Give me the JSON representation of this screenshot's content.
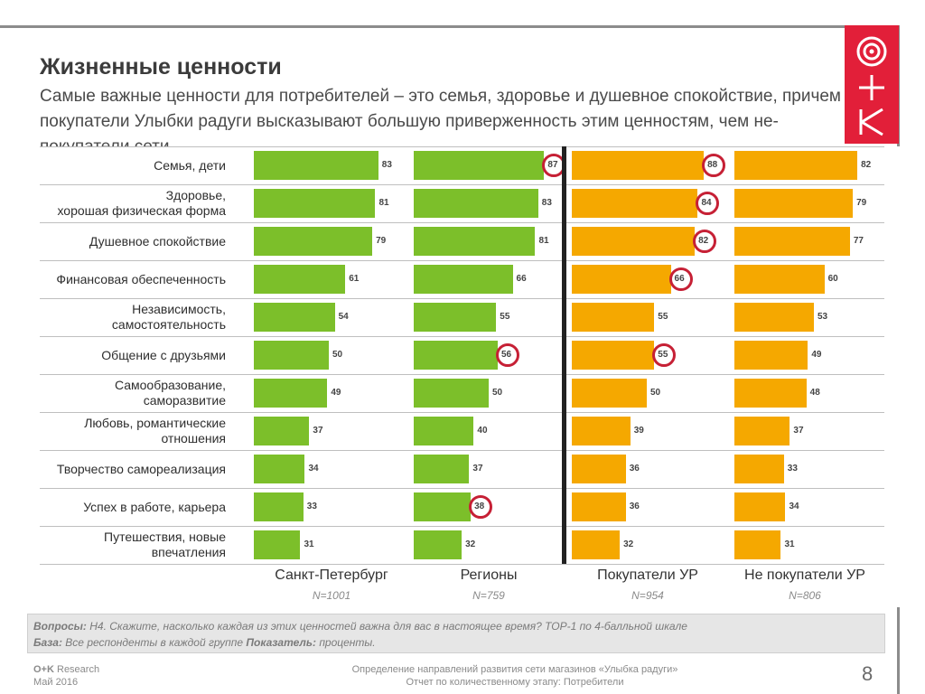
{
  "header": {
    "title": "Жизненные ценности",
    "subtitle": "Самые важные ценности для потребителей – это семья, здоровье и душевное спокойствие, причем покупатели Улыбки радуги высказывают большую приверженность этим ценностям, чем не-покупатели сети"
  },
  "colors": {
    "green": "#7cbf2a",
    "orange": "#f5a800",
    "accent": "#e21f39",
    "highlight_circle": "#c62035"
  },
  "chart_data": {
    "type": "bar",
    "categories": [
      "Семья, дети",
      "Здоровье,\nхорошая физическая форма",
      "Душевное спокойствие",
      "Финансовая обеспеченность",
      "Независимость,\nсамостоятельность",
      "Общение с друзьями",
      "Самообразование,\nсаморазвитие",
      "Любовь, романтические\nотношения",
      "Творчество самореализация",
      "Успех в работе, карьера",
      "Путешествия, новые\nвпечатления"
    ],
    "series": [
      {
        "name": "Санкт-Петербург",
        "n": "N=1001",
        "color": "#7cbf2a",
        "values": [
          83,
          81,
          79,
          61,
          54,
          50,
          49,
          37,
          34,
          33,
          31
        ],
        "highlight": []
      },
      {
        "name": "Регионы",
        "n": "N=759",
        "color": "#7cbf2a",
        "values": [
          87,
          83,
          81,
          66,
          55,
          56,
          50,
          40,
          37,
          38,
          32
        ],
        "highlight": [
          0,
          5,
          9
        ]
      },
      {
        "name": "Покупатели УР",
        "n": "N=954",
        "color": "#f5a800",
        "values": [
          88,
          84,
          82,
          66,
          55,
          55,
          50,
          39,
          36,
          36,
          32
        ],
        "highlight": [
          0,
          1,
          2,
          3,
          5
        ]
      },
      {
        "name": "Не покупатели УР",
        "n": "N=806",
        "color": "#f5a800",
        "values": [
          82,
          79,
          77,
          60,
          53,
          49,
          48,
          37,
          33,
          34,
          31
        ],
        "highlight": []
      }
    ]
  },
  "notes": {
    "questions_label": "Вопросы:",
    "questions_text": " H4. Скажите, насколько каждая из этих ценностей важна для вас в настоящее время? TOP-1 по 4-балльной шкале",
    "base_label": "База:",
    "base_text": " Все респонденты в каждой группе ",
    "indicator_label": "Показатель:",
    "indicator_text": " проценты."
  },
  "footer": {
    "company_bold": "O+K",
    "company_rest": " Research",
    "date": "Май 2016",
    "report_line1": "Определение направлений развития сети магазинов «Улыбка радуги»",
    "report_line2": "Отчет по количественному этапу: Потребители",
    "page_number": "8"
  }
}
